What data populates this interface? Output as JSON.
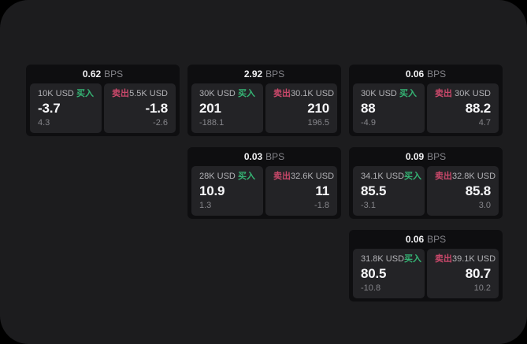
{
  "colors": {
    "buy_green": "#35b474",
    "sell_red": "#c9486a"
  },
  "cards": [
    {
      "bps_value": "0.62",
      "bps_unit": "BPS",
      "buy": {
        "amount": "10K USD",
        "label": "买入",
        "price": "-3.7",
        "delta": "4.3"
      },
      "sell": {
        "label": "卖出",
        "amount": "5.5K USD",
        "price": "-1.8",
        "delta": "-2.6"
      }
    },
    {
      "bps_value": "2.92",
      "bps_unit": "BPS",
      "buy": {
        "amount": "30K USD",
        "label": "买入",
        "price": "201",
        "delta": "-188.1"
      },
      "sell": {
        "label": "卖出",
        "amount": "30.1K USD",
        "price": "210",
        "delta": "196.5"
      }
    },
    {
      "bps_value": "0.06",
      "bps_unit": "BPS",
      "buy": {
        "amount": "30K USD",
        "label": "买入",
        "price": "88",
        "delta": "-4.9"
      },
      "sell": {
        "label": "卖出",
        "amount": "30K USD",
        "price": "88.2",
        "delta": "4.7"
      }
    },
    {
      "bps_value": "0.03",
      "bps_unit": "BPS",
      "buy": {
        "amount": "28K USD",
        "label": "买入",
        "price": "10.9",
        "delta": "1.3"
      },
      "sell": {
        "label": "卖出",
        "amount": "32.6K USD",
        "price": "11",
        "delta": "-1.8"
      }
    },
    {
      "bps_value": "0.09",
      "bps_unit": "BPS",
      "buy": {
        "amount": "34.1K USD",
        "label": "买入",
        "price": "85.5",
        "delta": "-3.1"
      },
      "sell": {
        "label": "卖出",
        "amount": "32.8K USD",
        "price": "85.8",
        "delta": "3.0"
      }
    },
    {
      "bps_value": "0.06",
      "bps_unit": "BPS",
      "buy": {
        "amount": "31.8K USD",
        "label": "买入",
        "price": "80.5",
        "delta": "-10.8"
      },
      "sell": {
        "label": "卖出",
        "amount": "39.1K USD",
        "price": "80.7",
        "delta": "10.2"
      }
    }
  ]
}
